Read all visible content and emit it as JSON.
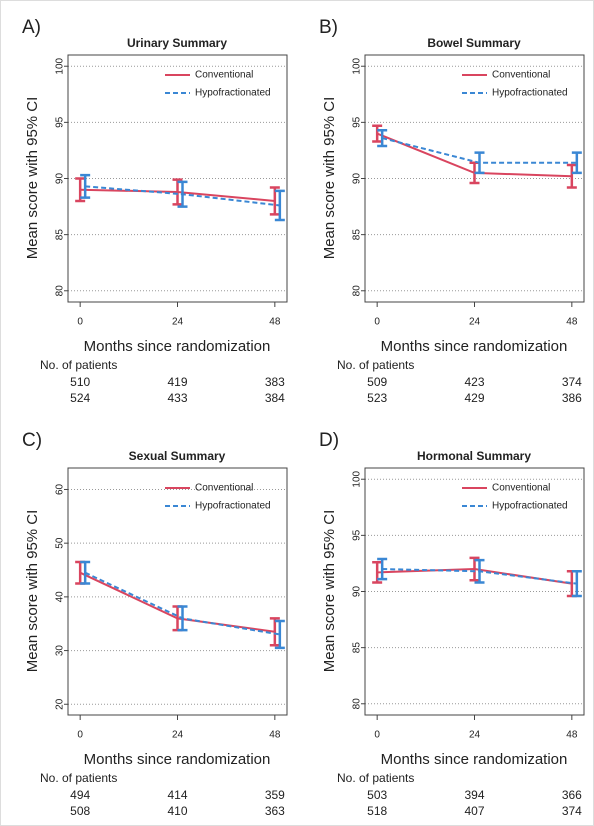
{
  "chart_data": [
    {
      "type": "line",
      "panel_label": "A)",
      "title": "Urinary Summary",
      "y_label": "Mean score with 95% CI",
      "x_label": "Months since randomization",
      "x": [
        0,
        24,
        48
      ],
      "xlim": [
        -3,
        51
      ],
      "xticks": [
        0,
        24,
        48
      ],
      "ylim": [
        79,
        101
      ],
      "yticks": [
        80,
        85,
        90,
        95,
        100
      ],
      "grid": true,
      "legend": "top-right",
      "series": [
        {
          "name": "Conventional",
          "color": "#d9455f",
          "dash": false,
          "values": [
            89.0,
            88.8,
            88.0
          ],
          "errors": [
            1.0,
            1.1,
            1.2
          ]
        },
        {
          "name": "Hypofractionated",
          "color": "#3a87d4",
          "dash": true,
          "values": [
            89.3,
            88.6,
            87.6
          ],
          "errors": [
            1.0,
            1.1,
            1.3
          ]
        }
      ],
      "patients": {
        "label": "No. of patients",
        "counts": [
          [
            510,
            419,
            383
          ],
          [
            524,
            433,
            384
          ]
        ]
      }
    },
    {
      "type": "line",
      "panel_label": "B)",
      "title": "Bowel Summary",
      "y_label": "Mean score with 95% CI",
      "x_label": "Months since randomization",
      "x": [
        0,
        24,
        48
      ],
      "xlim": [
        -3,
        51
      ],
      "xticks": [
        0,
        24,
        48
      ],
      "ylim": [
        79,
        101
      ],
      "yticks": [
        80,
        85,
        90,
        95,
        100
      ],
      "grid": true,
      "legend": "top-right",
      "series": [
        {
          "name": "Conventional",
          "color": "#d9455f",
          "dash": false,
          "values": [
            94.0,
            90.5,
            90.2
          ],
          "errors": [
            0.7,
            0.9,
            1.0
          ]
        },
        {
          "name": "Hypofractionated",
          "color": "#3a87d4",
          "dash": true,
          "values": [
            93.6,
            91.4,
            91.4
          ],
          "errors": [
            0.7,
            0.9,
            0.9
          ]
        }
      ],
      "patients": {
        "label": "No. of patients",
        "counts": [
          [
            509,
            423,
            374
          ],
          [
            523,
            429,
            386
          ]
        ]
      }
    },
    {
      "type": "line",
      "panel_label": "C)",
      "title": "Sexual Summary",
      "y_label": "Mean score with 95% CI",
      "x_label": "Months since randomization",
      "x": [
        0,
        24,
        48
      ],
      "xlim": [
        -3,
        51
      ],
      "xticks": [
        0,
        24,
        48
      ],
      "ylim": [
        18,
        64
      ],
      "yticks": [
        20,
        30,
        40,
        50,
        60
      ],
      "grid": true,
      "legend": "top-right",
      "series": [
        {
          "name": "Conventional",
          "color": "#d9455f",
          "dash": false,
          "values": [
            44.5,
            36.0,
            33.5
          ],
          "errors": [
            2.0,
            2.2,
            2.5
          ]
        },
        {
          "name": "Hypofractionated",
          "color": "#3a87d4",
          "dash": true,
          "values": [
            44.5,
            36.0,
            33.0
          ],
          "errors": [
            2.0,
            2.2,
            2.5
          ]
        }
      ],
      "patients": {
        "label": "No. of patients",
        "counts": [
          [
            494,
            414,
            359
          ],
          [
            508,
            410,
            363
          ]
        ]
      }
    },
    {
      "type": "line",
      "panel_label": "D)",
      "title": "Hormonal Summary",
      "y_label": "Mean score with 95% CI",
      "x_label": "Months since randomization",
      "x": [
        0,
        24,
        48
      ],
      "xlim": [
        -3,
        51
      ],
      "xticks": [
        0,
        24,
        48
      ],
      "ylim": [
        79,
        101
      ],
      "yticks": [
        80,
        85,
        90,
        95,
        100
      ],
      "grid": true,
      "legend": "top-right",
      "series": [
        {
          "name": "Conventional",
          "color": "#d9455f",
          "dash": false,
          "values": [
            91.7,
            92.0,
            90.7
          ],
          "errors": [
            0.9,
            1.0,
            1.1
          ]
        },
        {
          "name": "Hypofractionated",
          "color": "#3a87d4",
          "dash": true,
          "values": [
            92.0,
            91.8,
            90.7
          ],
          "errors": [
            0.9,
            1.0,
            1.1
          ]
        }
      ],
      "patients": {
        "label": "No. of patients",
        "counts": [
          [
            503,
            394,
            366
          ],
          [
            518,
            407,
            374
          ]
        ]
      }
    }
  ]
}
